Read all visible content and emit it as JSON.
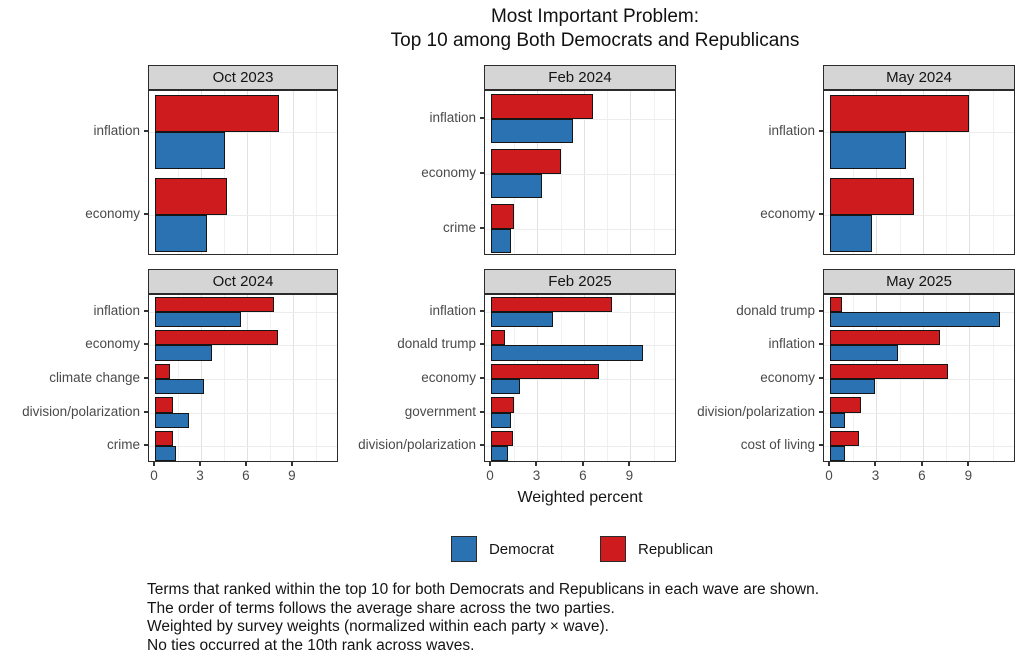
{
  "title": {
    "line1": "Most Important Problem:",
    "line2": "Top 10 among Both Democrats and Republicans"
  },
  "xlabel": "Weighted percent",
  "legend": {
    "democrat_label": "Democrat",
    "republican_label": "Republican"
  },
  "colors": {
    "democrat": "#2b72b2",
    "republican": "#ce1b1e",
    "bar_outline": "#151515",
    "strip_bg": "#d5d5d5",
    "panel_border": "#2b2b2b",
    "grid_major": "#e1e1e1",
    "grid_minor": "#f0f0f0",
    "axis_text": "#4a4a4a"
  },
  "axis": {
    "ticks": [
      0,
      3,
      6,
      9
    ],
    "minor_ticks": [
      1.5,
      4.5,
      7.5,
      10.5
    ],
    "range": [
      0,
      11.75
    ]
  },
  "caption_lines": [
    "Terms that ranked within the top 10 for both Democrats and Republicans in each wave are shown.",
    "The order of terms follows the average share across the two parties.",
    "Weighted by survey weights (normalized within each party × wave).",
    "No ties occurred at the 10th rank across waves."
  ],
  "chart_data": {
    "type": "bar",
    "orientation": "horizontal",
    "unit": "weighted percent",
    "series_names": [
      "Democrat",
      "Republican"
    ],
    "legend_position": "bottom",
    "grid": true,
    "xlim": [
      0,
      11.75
    ],
    "facets": [
      {
        "title": "Oct 2023",
        "categories": [
          "inflation",
          "economy"
        ],
        "republican": [
          8.1,
          4.7
        ],
        "democrat": [
          4.6,
          3.4
        ]
      },
      {
        "title": "Feb 2024",
        "categories": [
          "inflation",
          "economy",
          "crime"
        ],
        "republican": [
          6.6,
          4.5,
          1.5
        ],
        "democrat": [
          5.3,
          3.3,
          1.3
        ]
      },
      {
        "title": "May 2024",
        "categories": [
          "inflation",
          "economy"
        ],
        "republican": [
          9.0,
          5.4
        ],
        "democrat": [
          4.9,
          2.7
        ]
      },
      {
        "title": "Oct 2024",
        "categories": [
          "inflation",
          "economy",
          "climate change",
          "division/polarization",
          "crime"
        ],
        "republican": [
          7.8,
          8.0,
          1.0,
          1.2,
          1.2
        ],
        "democrat": [
          5.6,
          3.7,
          3.2,
          2.2,
          1.4
        ]
      },
      {
        "title": "Feb 2025",
        "categories": [
          "inflation",
          "donald trump",
          "economy",
          "government",
          "division/polarization"
        ],
        "republican": [
          7.8,
          0.9,
          7.0,
          1.5,
          1.4
        ],
        "democrat": [
          4.0,
          9.8,
          1.9,
          1.3,
          1.1
        ]
      },
      {
        "title": "May 2025",
        "categories": [
          "donald trump",
          "inflation",
          "economy",
          "division/polarization",
          "cost of living"
        ],
        "republican": [
          0.8,
          7.1,
          7.6,
          2.0,
          1.9
        ],
        "democrat": [
          11.0,
          4.4,
          2.9,
          1.0,
          1.0
        ]
      }
    ]
  }
}
